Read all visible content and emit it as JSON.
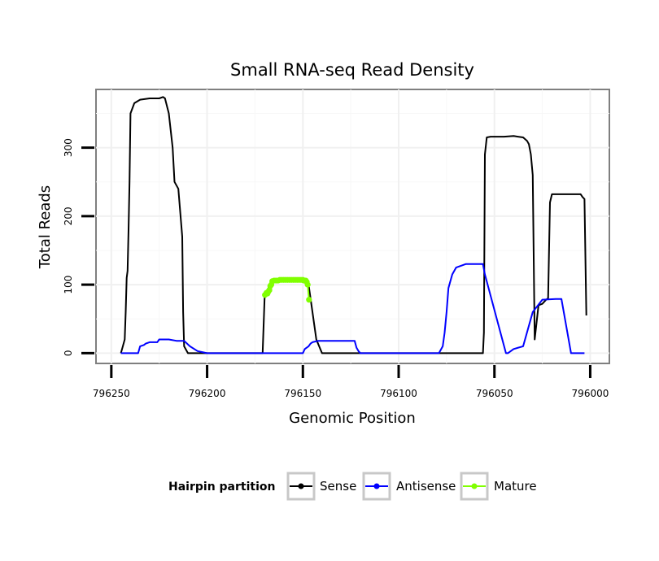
{
  "chart_data": {
    "type": "line",
    "title": "Small RNA-seq Read Density",
    "xlabel": "Genomic Position",
    "ylabel": "Total Reads",
    "x_reversed": true,
    "xlim": [
      796258,
      795990
    ],
    "ylim": [
      -15,
      385
    ],
    "x_ticks": [
      796250,
      796200,
      796150,
      796100,
      796050,
      796000
    ],
    "x_tick_labels": [
      "796250",
      "796200",
      "796150",
      "796100",
      "796050",
      "796000"
    ],
    "y_ticks": [
      0,
      100,
      200,
      300
    ],
    "y_tick_labels": [
      "0",
      "100",
      "200",
      "300"
    ],
    "grid": true,
    "legend": {
      "title": "Hairpin partition",
      "position": "bottom",
      "entries": [
        "Sense",
        "Antisense",
        "Mature"
      ]
    },
    "series": [
      {
        "name": "Sense",
        "color": "#000000",
        "x": [
          796245,
          796244,
          796243,
          796242.5,
          796242,
          796241.5,
          796241,
          796240.5,
          796240,
          796238,
          796235,
          796230,
          796225,
          796223,
          796222,
          796220,
          796218,
          796217,
          796215,
          796213,
          796212.5,
          796212,
          796210,
          796200,
          796190,
          796180,
          796171,
          796170,
          796169,
          796166,
          796150,
          796147,
          796146,
          796143,
          796140,
          796120,
          796080,
          796060,
          796056,
          796055.5,
          796055,
          796054,
          796052,
          796045,
          796040,
          796035,
          796033,
          796032,
          796031,
          796030,
          796029,
          796027,
          796025,
          796024,
          796023,
          796022,
          796021,
          796020,
          796010,
          796005,
          796004,
          796003,
          796002
        ],
        "y": [
          0,
          10,
          20,
          60,
          110,
          120,
          180,
          250,
          350,
          365,
          370,
          372,
          372,
          374,
          372,
          350,
          300,
          250,
          240,
          170,
          60,
          10,
          0,
          0,
          0,
          0,
          0,
          80,
          90,
          105,
          105,
          100,
          80,
          20,
          0,
          0,
          0,
          0,
          0,
          30,
          290,
          315,
          316,
          316,
          317,
          315,
          310,
          305,
          290,
          260,
          20,
          70,
          72,
          75,
          78,
          80,
          220,
          232,
          232,
          232,
          228,
          225,
          55
        ]
      },
      {
        "name": "Antisense",
        "color": "#0000ff",
        "x": [
          796245,
          796238,
          796236,
          796235,
          796233,
          796232,
          796230,
          796226,
          796225,
          796221,
          796220,
          796216,
          796213,
          796212,
          796209,
          796205,
          796200,
          796150,
          796149,
          796147,
          796146,
          796145,
          796142,
          796140,
          796135,
          796125,
          796123,
          796122,
          796121,
          796120,
          796110,
          796079,
          796077,
          796076,
          796075,
          796074,
          796072,
          796070,
          796065,
          796058,
          796056,
          796055,
          796044,
          796043,
          796040,
          796035,
          796030,
          796025,
          796018,
          796017,
          796015,
          796010,
          796003
        ],
        "y": [
          0,
          0,
          0,
          10,
          12,
          14,
          16,
          16,
          20,
          20,
          20,
          18,
          18,
          18,
          10,
          3,
          0,
          0,
          6,
          10,
          14,
          16,
          18,
          18,
          18,
          18,
          18,
          8,
          3,
          0,
          0,
          0,
          10,
          30,
          60,
          95,
          115,
          125,
          130,
          130,
          130,
          115,
          0,
          0,
          6,
          10,
          60,
          78,
          79,
          79,
          79,
          0,
          0
        ]
      },
      {
        "name": "Mature",
        "color": "#80ff00",
        "markers": true,
        "x": [
          796169.8,
          796169,
          796168.5,
          796168,
          796167.5,
          796167,
          796166.5,
          796166,
          796165,
          796164,
          796163,
          796162,
          796161,
          796160,
          796159,
          796158,
          796157,
          796156,
          796155,
          796154,
          796153,
          796152,
          796151,
          796150,
          796149.5,
          796149,
          796148.5,
          796148,
          796147.5,
          796146.8
        ],
        "y": [
          85,
          88,
          87,
          90,
          92,
          98,
          100,
          105,
          106,
          106,
          106,
          107,
          107,
          107,
          107,
          107,
          107,
          107,
          107,
          107,
          107,
          107,
          107,
          107,
          106,
          106,
          106,
          104,
          100,
          78
        ]
      }
    ]
  }
}
